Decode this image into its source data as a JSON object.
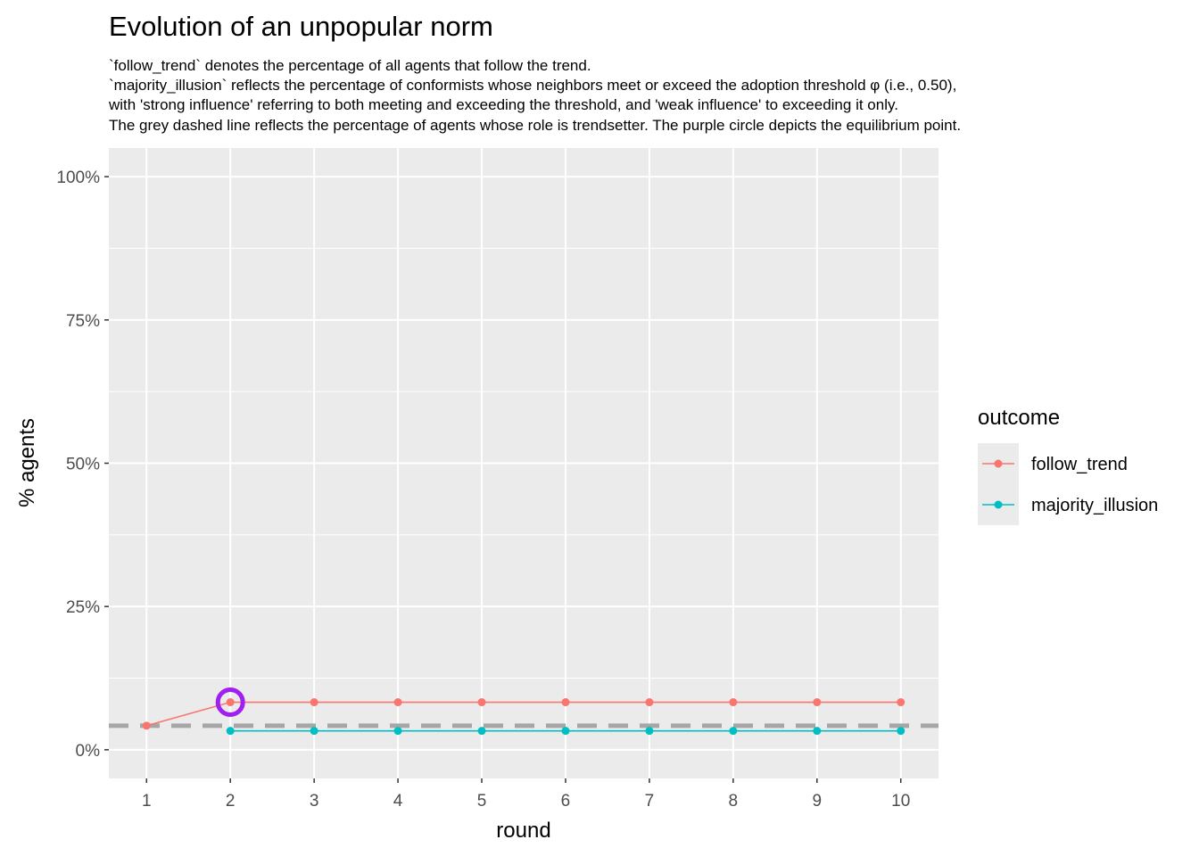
{
  "chart_data": {
    "type": "line",
    "title": "Evolution of an unpopular norm",
    "subtitle": [
      "`follow_trend` denotes the percentage of all agents that follow the trend.",
      "`majority_illusion` reflects the percentage of conformists whose neighbors meet or exceed the adoption threshold φ (i.e., 0.50),",
      "with 'strong influence' referring to both meeting and exceeding the threshold, and 'weak influence' to exceeding it only.",
      "The grey dashed line reflects the percentage of agents whose role is trendsetter. The purple circle depicts the equilibrium point."
    ],
    "xlabel": "round",
    "ylabel": "% agents",
    "x": [
      1,
      2,
      3,
      4,
      5,
      6,
      7,
      8,
      9,
      10
    ],
    "x_ticks": [
      "1",
      "2",
      "3",
      "4",
      "5",
      "6",
      "7",
      "8",
      "9",
      "10"
    ],
    "xlim": [
      0.55,
      10.45
    ],
    "y_ticks": [
      0,
      0.25,
      0.5,
      0.75,
      1.0
    ],
    "y_tick_labels": [
      "0%",
      "25%",
      "50%",
      "75%",
      "100%"
    ],
    "ylim": [
      -0.05,
      1.05
    ],
    "grid": true,
    "legend": {
      "title": "outcome",
      "position": "right"
    },
    "series": [
      {
        "name": "follow_trend",
        "color": "#F8766D",
        "x": [
          1,
          2,
          3,
          4,
          5,
          6,
          7,
          8,
          9,
          10
        ],
        "values": [
          0.042,
          0.083,
          0.083,
          0.083,
          0.083,
          0.083,
          0.083,
          0.083,
          0.083,
          0.083
        ]
      },
      {
        "name": "majority_illusion",
        "color": "#00BFC4",
        "x": [
          2,
          3,
          4,
          5,
          6,
          7,
          8,
          9,
          10
        ],
        "values": [
          0.033,
          0.033,
          0.033,
          0.033,
          0.033,
          0.033,
          0.033,
          0.033,
          0.033
        ]
      }
    ],
    "reference_line": {
      "y": 0.042,
      "style": "dashed",
      "color": "#A6A6A6"
    },
    "equilibrium_point": {
      "x": 2,
      "y": 0.083,
      "color": "#A020F0"
    }
  }
}
